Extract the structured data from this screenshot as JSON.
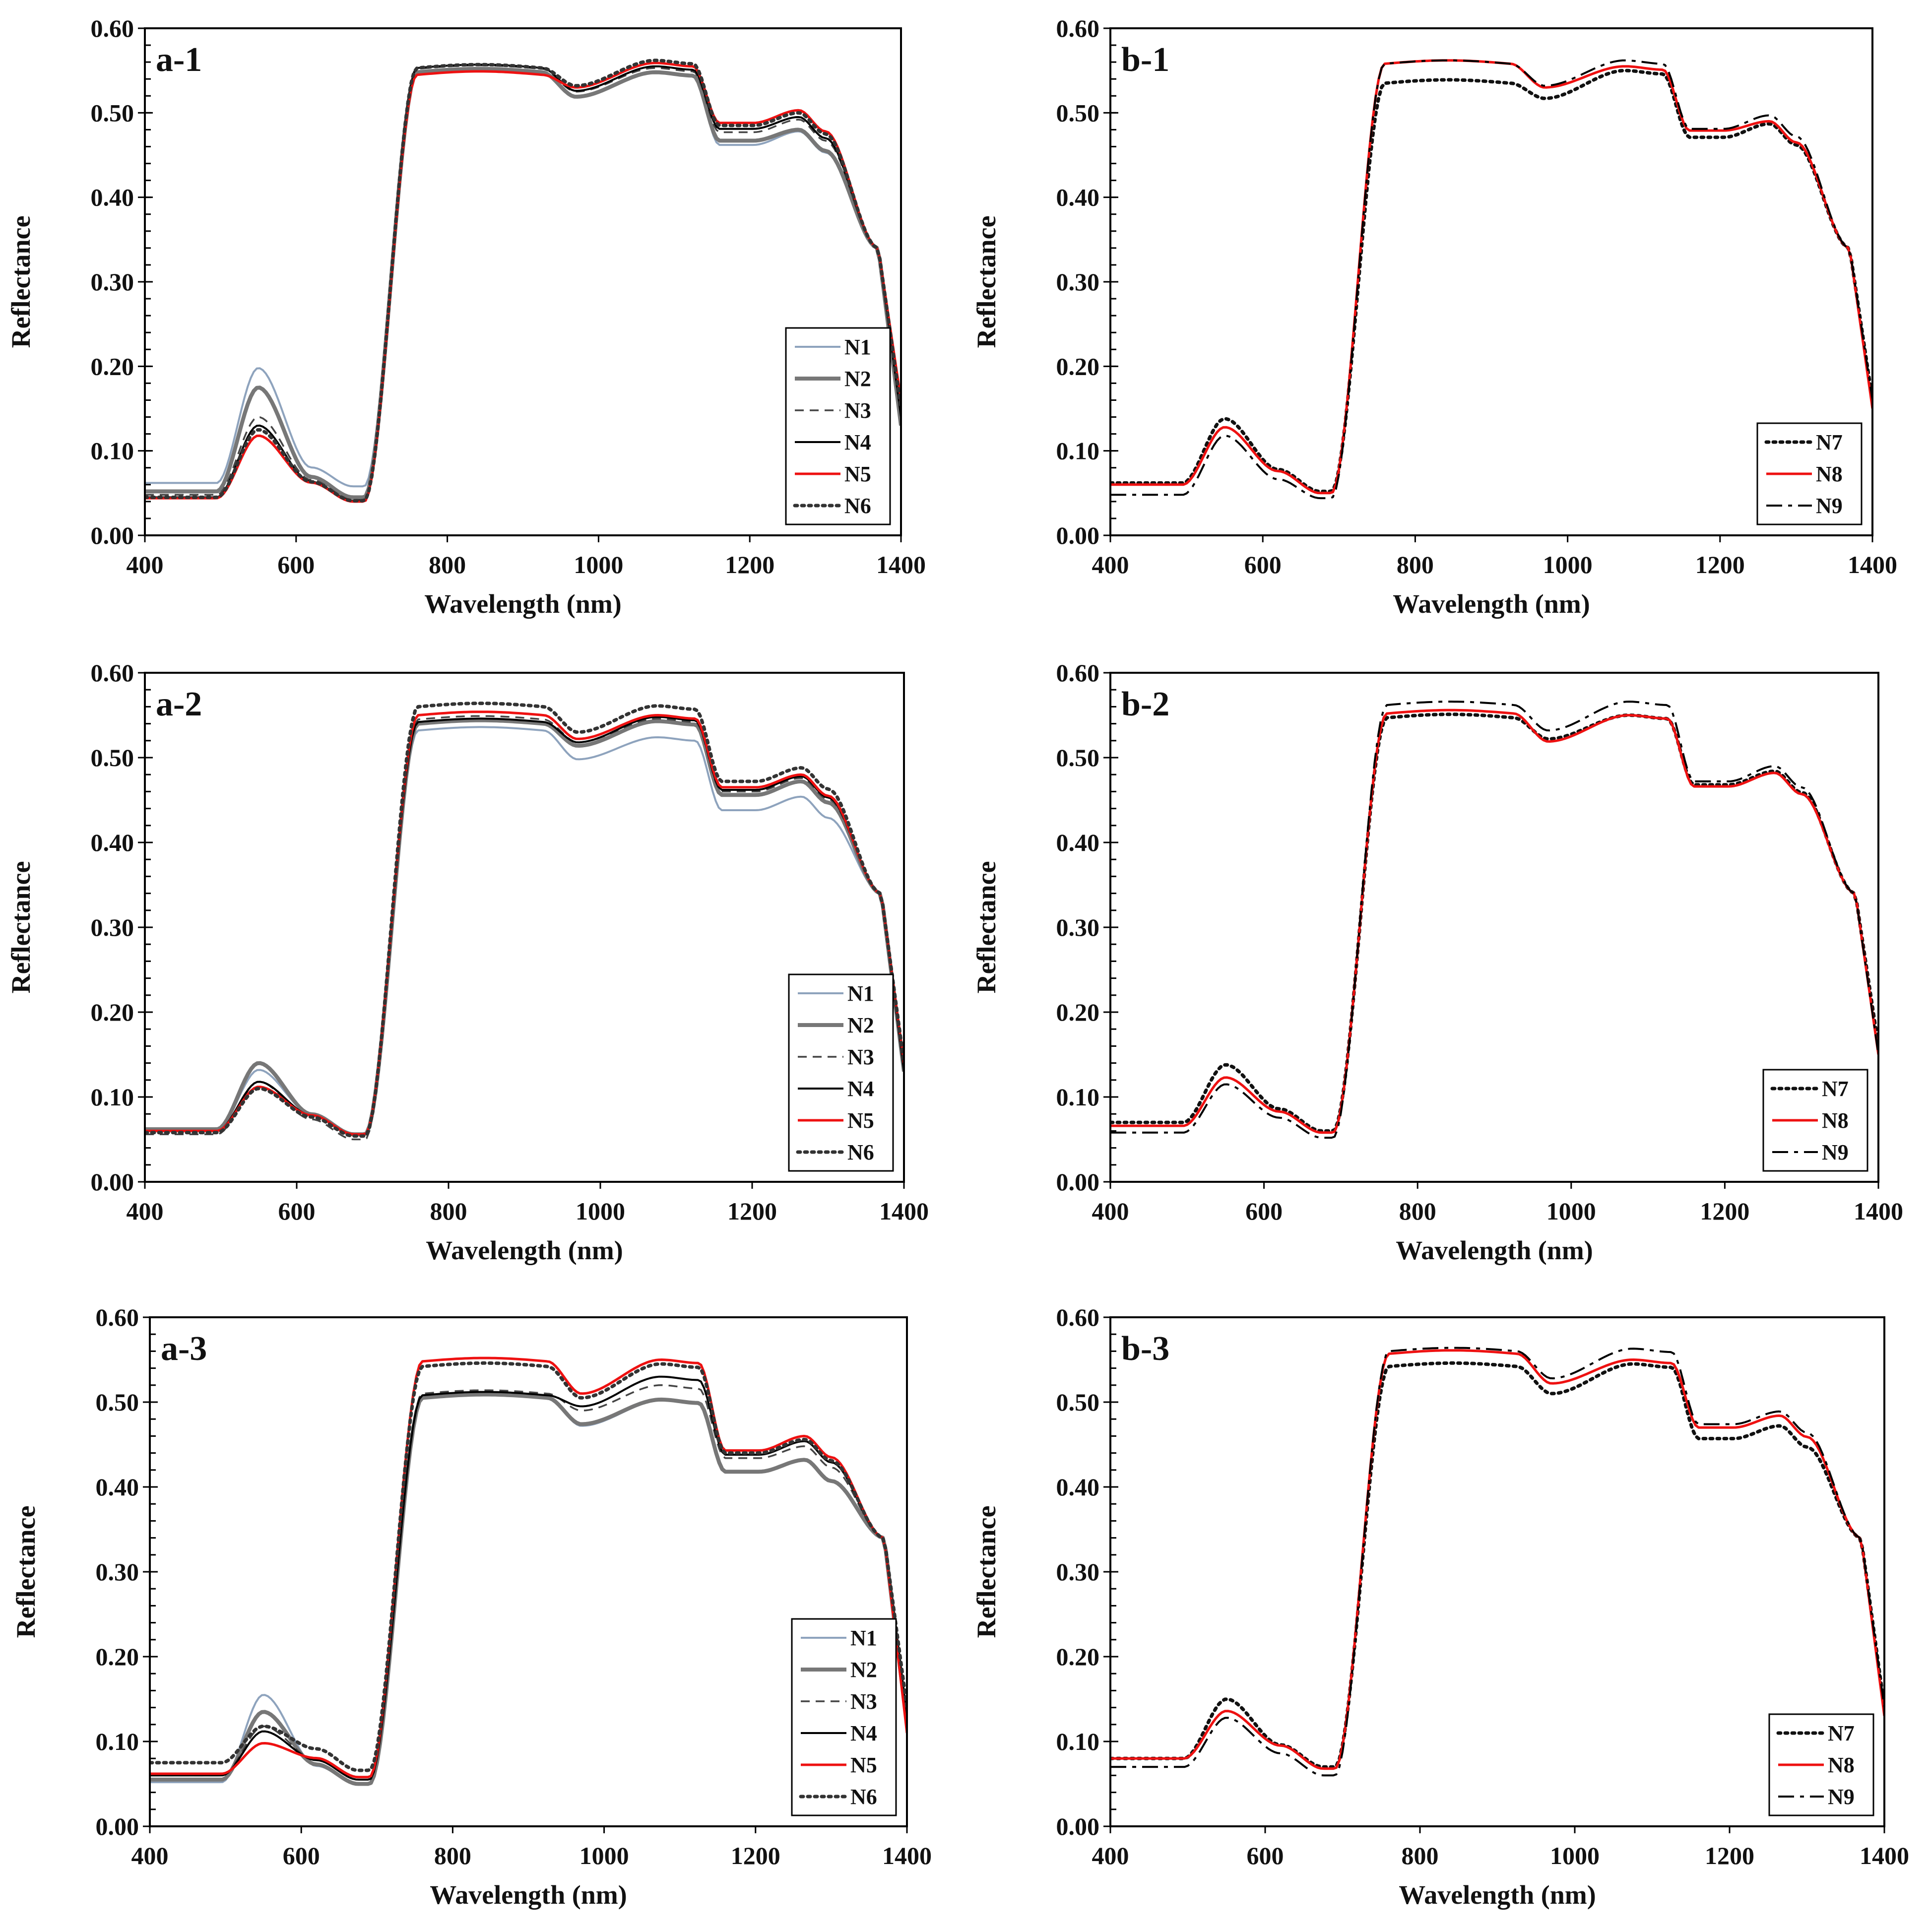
{
  "figure": {
    "xlabel": "Wavelength (nm)",
    "ylabel": "Reflectance",
    "xticks": [
      "400",
      "600",
      "800",
      "1000",
      "1200",
      "1400"
    ],
    "yticks": [
      "0.00",
      "0.10",
      "0.20",
      "0.30",
      "0.40",
      "0.50",
      "0.60"
    ]
  },
  "styles": {
    "N1": {
      "color": "#8ea3bd",
      "dash": "",
      "width": 4
    },
    "N2": {
      "color": "#777777",
      "dash": "",
      "width": 8
    },
    "N3": {
      "color": "#444444",
      "dash": "18 12",
      "width": 3.5
    },
    "N4": {
      "color": "#000000",
      "dash": "",
      "width": 4
    },
    "N5": {
      "color": "#ee1111",
      "dash": "",
      "width": 5
    },
    "N6": {
      "color": "#333333",
      "dash": "5 9",
      "width": 7
    },
    "N7": {
      "color": "#111111",
      "dash": "5 9",
      "width": 7
    },
    "N8": {
      "color": "#ee1111",
      "dash": "",
      "width": 5
    },
    "N9": {
      "color": "#000000",
      "dash": "32 12 8 12",
      "width": 4
    }
  },
  "chart_data": [
    {
      "id": "a-1",
      "type": "line",
      "title": "a-1",
      "xlabel": "Wavelength (nm)",
      "ylabel": "Reflectance",
      "xlim": [
        400,
        1400
      ],
      "ylim": [
        0,
        0.6
      ],
      "legend_position": "bottom-right",
      "series": [
        {
          "name": "N1",
          "base": 0.062,
          "green": 0.198,
          "red": 0.058,
          "nir": 0.548,
          "dip": 0.519,
          "peak": 0.548,
          "sh": 0.462,
          "sh2": 0.478,
          "end": 0.13
        },
        {
          "name": "N2",
          "base": 0.052,
          "green": 0.175,
          "red": 0.045,
          "nir": 0.548,
          "dip": 0.519,
          "peak": 0.548,
          "sh": 0.467,
          "sh2": 0.48,
          "end": 0.13
        },
        {
          "name": "N3",
          "base": 0.048,
          "green": 0.14,
          "red": 0.042,
          "nir": 0.552,
          "dip": 0.525,
          "peak": 0.553,
          "sh": 0.477,
          "sh2": 0.492,
          "end": 0.14
        },
        {
          "name": "N4",
          "base": 0.045,
          "green": 0.13,
          "red": 0.041,
          "nir": 0.553,
          "dip": 0.526,
          "peak": 0.555,
          "sh": 0.481,
          "sh2": 0.495,
          "end": 0.14
        },
        {
          "name": "N5",
          "base": 0.044,
          "green": 0.118,
          "red": 0.04,
          "nir": 0.545,
          "dip": 0.53,
          "peak": 0.559,
          "sh": 0.488,
          "sh2": 0.503,
          "end": 0.16
        },
        {
          "name": "N6",
          "base": 0.045,
          "green": 0.125,
          "red": 0.041,
          "nir": 0.553,
          "dip": 0.532,
          "peak": 0.562,
          "sh": 0.485,
          "sh2": 0.5,
          "end": 0.15
        }
      ]
    },
    {
      "id": "b-1",
      "type": "line",
      "title": "b-1",
      "xlabel": "Wavelength (nm)",
      "ylabel": "Reflectance",
      "xlim": [
        400,
        1400
      ],
      "ylim": [
        0,
        0.6
      ],
      "legend_position": "bottom-right",
      "series": [
        {
          "name": "N7",
          "base": 0.062,
          "green": 0.138,
          "red": 0.052,
          "nir": 0.535,
          "dip": 0.517,
          "peak": 0.55,
          "sh": 0.471,
          "sh2": 0.487,
          "end": 0.16
        },
        {
          "name": "N8",
          "base": 0.06,
          "green": 0.128,
          "red": 0.05,
          "nir": 0.558,
          "dip": 0.53,
          "peak": 0.555,
          "sh": 0.479,
          "sh2": 0.49,
          "end": 0.15
        },
        {
          "name": "N9",
          "base": 0.048,
          "green": 0.118,
          "red": 0.044,
          "nir": 0.558,
          "dip": 0.532,
          "peak": 0.562,
          "sh": 0.481,
          "sh2": 0.497,
          "end": 0.16
        }
      ]
    },
    {
      "id": "a-2",
      "type": "line",
      "title": "a-2",
      "xlabel": "Wavelength (nm)",
      "ylabel": "Reflectance",
      "xlim": [
        400,
        1400
      ],
      "ylim": [
        0,
        0.6
      ],
      "legend_position": "bottom-right",
      "series": [
        {
          "name": "N1",
          "base": 0.062,
          "green": 0.132,
          "red": 0.056,
          "nir": 0.532,
          "dip": 0.498,
          "peak": 0.524,
          "sh": 0.438,
          "sh2": 0.454,
          "end": 0.13
        },
        {
          "name": "N2",
          "base": 0.062,
          "green": 0.14,
          "red": 0.056,
          "nir": 0.54,
          "dip": 0.514,
          "peak": 0.543,
          "sh": 0.456,
          "sh2": 0.472,
          "end": 0.13
        },
        {
          "name": "N3",
          "base": 0.056,
          "green": 0.118,
          "red": 0.05,
          "nir": 0.545,
          "dip": 0.518,
          "peak": 0.546,
          "sh": 0.46,
          "sh2": 0.476,
          "end": 0.13
        },
        {
          "name": "N4",
          "base": 0.06,
          "green": 0.118,
          "red": 0.056,
          "nir": 0.542,
          "dip": 0.518,
          "peak": 0.548,
          "sh": 0.462,
          "sh2": 0.478,
          "end": 0.13
        },
        {
          "name": "N5",
          "base": 0.06,
          "green": 0.112,
          "red": 0.056,
          "nir": 0.55,
          "dip": 0.522,
          "peak": 0.55,
          "sh": 0.465,
          "sh2": 0.48,
          "end": 0.14
        },
        {
          "name": "N6",
          "base": 0.058,
          "green": 0.11,
          "red": 0.054,
          "nir": 0.56,
          "dip": 0.53,
          "peak": 0.561,
          "sh": 0.472,
          "sh2": 0.488,
          "end": 0.14
        }
      ]
    },
    {
      "id": "b-2",
      "type": "line",
      "title": "b-2",
      "xlabel": "Wavelength (nm)",
      "ylabel": "Reflectance",
      "xlim": [
        400,
        1400
      ],
      "ylim": [
        0,
        0.6
      ],
      "legend_position": "bottom-right",
      "series": [
        {
          "name": "N7",
          "base": 0.07,
          "green": 0.138,
          "red": 0.06,
          "nir": 0.547,
          "dip": 0.522,
          "peak": 0.55,
          "sh": 0.468,
          "sh2": 0.484,
          "end": 0.16
        },
        {
          "name": "N8",
          "base": 0.066,
          "green": 0.123,
          "red": 0.058,
          "nir": 0.552,
          "dip": 0.519,
          "peak": 0.55,
          "sh": 0.466,
          "sh2": 0.482,
          "end": 0.15
        },
        {
          "name": "N9",
          "base": 0.058,
          "green": 0.115,
          "red": 0.052,
          "nir": 0.562,
          "dip": 0.532,
          "peak": 0.566,
          "sh": 0.472,
          "sh2": 0.49,
          "end": 0.15
        }
      ]
    },
    {
      "id": "a-3",
      "type": "line",
      "title": "a-3",
      "xlabel": "Wavelength (nm)",
      "ylabel": "Reflectance",
      "xlim": [
        400,
        1400
      ],
      "ylim": [
        0,
        0.6
      ],
      "legend_position": "bottom-right",
      "series": [
        {
          "name": "N1",
          "base": 0.052,
          "green": 0.155,
          "red": 0.05,
          "nir": 0.505,
          "dip": 0.472,
          "peak": 0.502,
          "sh": 0.418,
          "sh2": 0.432,
          "end": 0.12
        },
        {
          "name": "N2",
          "base": 0.055,
          "green": 0.135,
          "red": 0.05,
          "nir": 0.505,
          "dip": 0.474,
          "peak": 0.503,
          "sh": 0.418,
          "sh2": 0.432,
          "end": 0.12
        },
        {
          "name": "N3",
          "base": 0.06,
          "green": 0.118,
          "red": 0.055,
          "nir": 0.51,
          "dip": 0.49,
          "peak": 0.52,
          "sh": 0.434,
          "sh2": 0.448,
          "end": 0.13
        },
        {
          "name": "N4",
          "base": 0.06,
          "green": 0.112,
          "red": 0.055,
          "nir": 0.508,
          "dip": 0.495,
          "peak": 0.53,
          "sh": 0.438,
          "sh2": 0.454,
          "end": 0.13
        },
        {
          "name": "N5",
          "base": 0.062,
          "green": 0.098,
          "red": 0.058,
          "nir": 0.548,
          "dip": 0.51,
          "peak": 0.55,
          "sh": 0.443,
          "sh2": 0.46,
          "end": 0.11
        },
        {
          "name": "N6",
          "base": 0.075,
          "green": 0.118,
          "red": 0.066,
          "nir": 0.542,
          "dip": 0.505,
          "peak": 0.545,
          "sh": 0.44,
          "sh2": 0.456,
          "end": 0.14
        }
      ]
    },
    {
      "id": "b-3",
      "type": "line",
      "title": "b-3",
      "xlabel": "Wavelength (nm)",
      "ylabel": "Reflectance",
      "xlim": [
        400,
        1400
      ],
      "ylim": [
        0,
        0.6
      ],
      "legend_position": "bottom-right",
      "series": [
        {
          "name": "N7",
          "base": 0.08,
          "green": 0.15,
          "red": 0.07,
          "nir": 0.542,
          "dip": 0.51,
          "peak": 0.545,
          "sh": 0.457,
          "sh2": 0.472,
          "end": 0.14
        },
        {
          "name": "N8",
          "base": 0.08,
          "green": 0.136,
          "red": 0.068,
          "nir": 0.557,
          "dip": 0.522,
          "peak": 0.55,
          "sh": 0.47,
          "sh2": 0.484,
          "end": 0.13
        },
        {
          "name": "N9",
          "base": 0.07,
          "green": 0.128,
          "red": 0.06,
          "nir": 0.56,
          "dip": 0.528,
          "peak": 0.563,
          "sh": 0.474,
          "sh2": 0.489,
          "end": 0.14
        }
      ]
    }
  ]
}
